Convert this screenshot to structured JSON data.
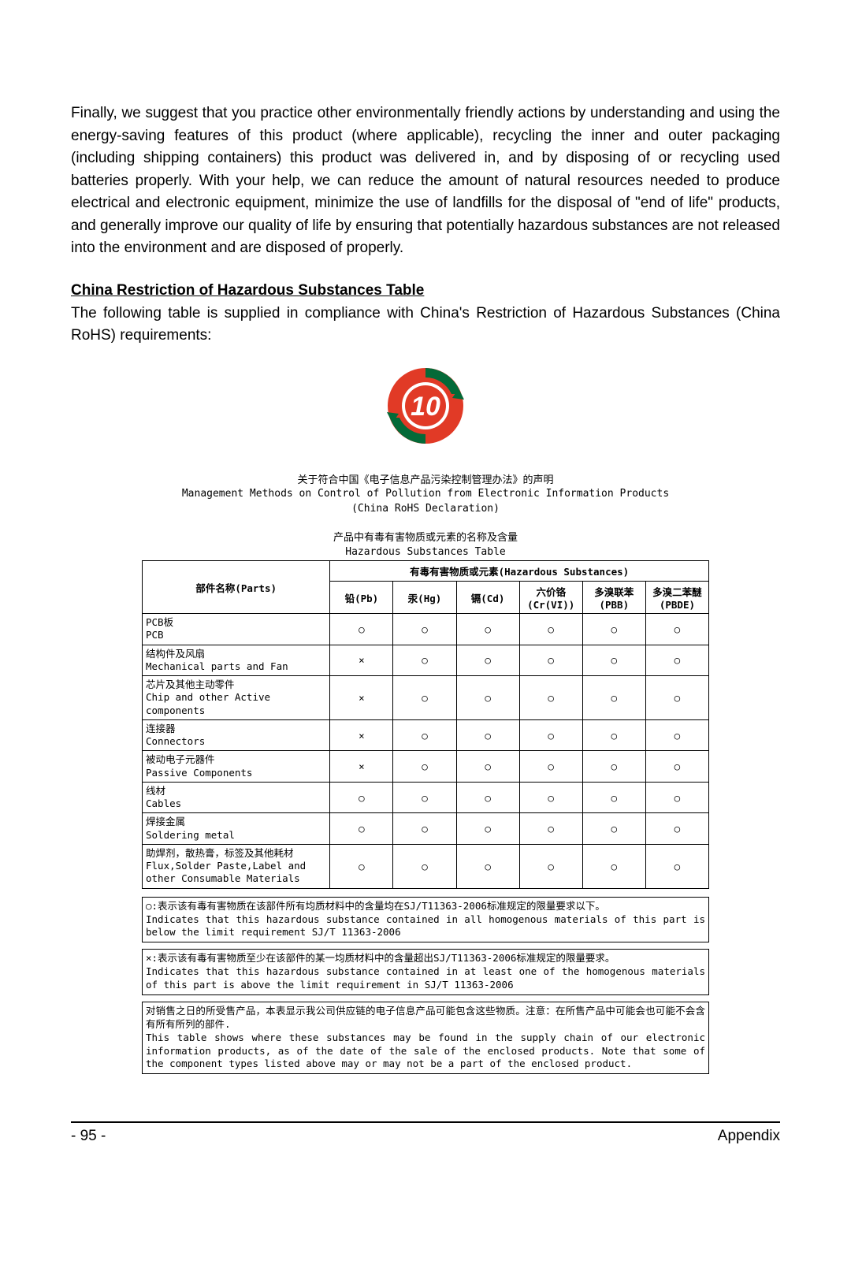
{
  "para1": "Finally, we suggest that you practice other environmentally friendly actions by understanding and using the energy-saving features of this product (where applicable), recycling the inner and outer packaging (including shipping containers) this product was delivered in, and by disposing of or recycling used batteries properly. With your help, we can reduce the amount of natural resources needed to produce electrical and electronic equipment, minimize the use of landfills for the disposal of \"end of life\" products, and generally improve our quality of life by ensuring that potentially hazardous substances are not released into the environment and are disposed of properly.",
  "heading": "China Restriction of Hazardous Substances Table",
  "para2": "The following table is supplied in compliance with China's Restriction of Hazardous Substances (China RoHS) requirements:",
  "logo": {
    "number": "10",
    "ring_color": "#e13a26",
    "arrow_color": "#046a38",
    "text_color": "#ffffff"
  },
  "decl": {
    "line1_cn": "关于符合中国《电子信息产品污染控制管理办法》的声明",
    "line2_en": "Management Methods on Control of Pollution from Electronic Information Products",
    "line3_en": "(China RoHS Declaration)"
  },
  "tableTitle": {
    "cn": "产品中有毒有害物质或元素的名称及含量",
    "en": "Hazardous Substances Table"
  },
  "table": {
    "partsHeader": "部件名称(Parts)",
    "superHeader": "有毒有害物质或元素(Hazardous Substances)",
    "cols": [
      {
        "l1": "铅(Pb)"
      },
      {
        "l1": "汞(Hg)"
      },
      {
        "l1": "镉(Cd)"
      },
      {
        "l1": "六价铬",
        "l2": "(Cr(VI))"
      },
      {
        "l1": "多溴联苯",
        "l2": "(PBB)"
      },
      {
        "l1": "多溴二苯醚",
        "l2": "(PBDE)"
      }
    ],
    "rows": [
      {
        "cn": "PCB板",
        "en": "PCB",
        "v": [
          "○",
          "○",
          "○",
          "○",
          "○",
          "○"
        ]
      },
      {
        "cn": "结构件及风扇",
        "en": "Mechanical parts and Fan",
        "v": [
          "×",
          "○",
          "○",
          "○",
          "○",
          "○"
        ]
      },
      {
        "cn": "芯片及其他主动零件",
        "en": "Chip and other Active components",
        "v": [
          "×",
          "○",
          "○",
          "○",
          "○",
          "○"
        ]
      },
      {
        "cn": "连接器",
        "en": "Connectors",
        "v": [
          "×",
          "○",
          "○",
          "○",
          "○",
          "○"
        ]
      },
      {
        "cn": "被动电子元器件",
        "en": "Passive Components",
        "v": [
          "×",
          "○",
          "○",
          "○",
          "○",
          "○"
        ]
      },
      {
        "cn": "线材",
        "en": "Cables",
        "v": [
          "○",
          "○",
          "○",
          "○",
          "○",
          "○"
        ]
      },
      {
        "cn": "焊接金属",
        "en": "Soldering metal",
        "v": [
          "○",
          "○",
          "○",
          "○",
          "○",
          "○"
        ]
      },
      {
        "cn": "助焊剂，散热膏，标签及其他耗材",
        "en": "Flux,Solder Paste,Label and other Consumable Materials",
        "v": [
          "○",
          "○",
          "○",
          "○",
          "○",
          "○"
        ]
      }
    ]
  },
  "notes": [
    "○:表示该有毒有害物质在该部件所有均质材料中的含量均在SJ/T11363-2006标准规定的限量要求以下。\nIndicates that this hazardous substance contained in all homogenous materials of this part is below the limit requirement SJ/T 11363-2006",
    "×:表示该有毒有害物质至少在该部件的某一均质材料中的含量超出SJ/T11363-2006标准规定的限量要求。\nIndicates that this hazardous substance contained in at least one of the homogenous materials of this part is above the limit requirement in SJ/T 11363-2006",
    "对销售之日的所受售产品，本表显示我公司供应链的电子信息产品可能包含这些物质。注意：在所售产品中可能会也可能不会含有所有所列的部件.\nThis table shows where these substances may be found in the supply chain of our electronic information products, as of the date of the sale of the enclosed products. Note that some of the component types listed above may or may not be a part of the enclosed product."
  ],
  "footer": {
    "page": "- 95 -",
    "section": "Appendix"
  },
  "colors": {
    "text": "#000000",
    "border": "#000000",
    "background": "#ffffff"
  }
}
